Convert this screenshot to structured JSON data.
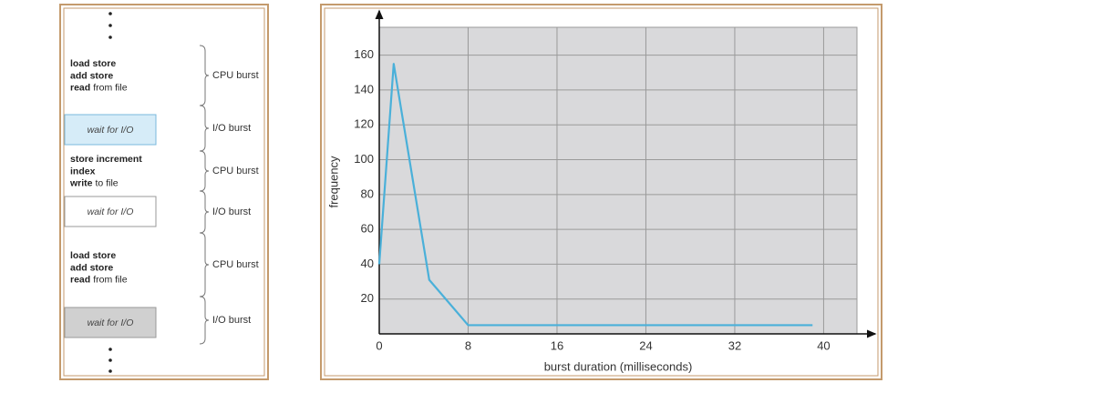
{
  "diagram": {
    "blocks": [
      {
        "lines": [
          [
            "load store"
          ],
          [
            "add store"
          ],
          [
            "read",
            "from file"
          ]
        ]
      },
      {
        "lines": [
          [
            "store increment"
          ],
          [
            "index"
          ],
          [
            "write",
            "to file"
          ]
        ]
      },
      {
        "lines": [
          [
            "load store"
          ],
          [
            "add store"
          ],
          [
            "read",
            "from file"
          ]
        ]
      }
    ],
    "waits": [
      "wait for I/O",
      "wait for I/O",
      "wait for I/O"
    ],
    "bursts": [
      "CPU burst",
      "I/O burst",
      "CPU burst",
      "I/O burst",
      "CPU burst",
      "I/O burst"
    ]
  },
  "chart_data": {
    "type": "line",
    "x": [
      0,
      1.3,
      4.5,
      8,
      39
    ],
    "values": [
      40,
      155,
      31,
      5,
      5
    ],
    "color": "#4ab0d9",
    "xlabel": "burst duration (milliseconds)",
    "ylabel": "frequency",
    "xlim": [
      0,
      43
    ],
    "ylim": [
      0,
      176
    ],
    "xticks": [
      0,
      8,
      16,
      24,
      32,
      40
    ],
    "yticks": [
      20,
      40,
      60,
      80,
      100,
      120,
      140,
      160
    ],
    "grid": true
  }
}
